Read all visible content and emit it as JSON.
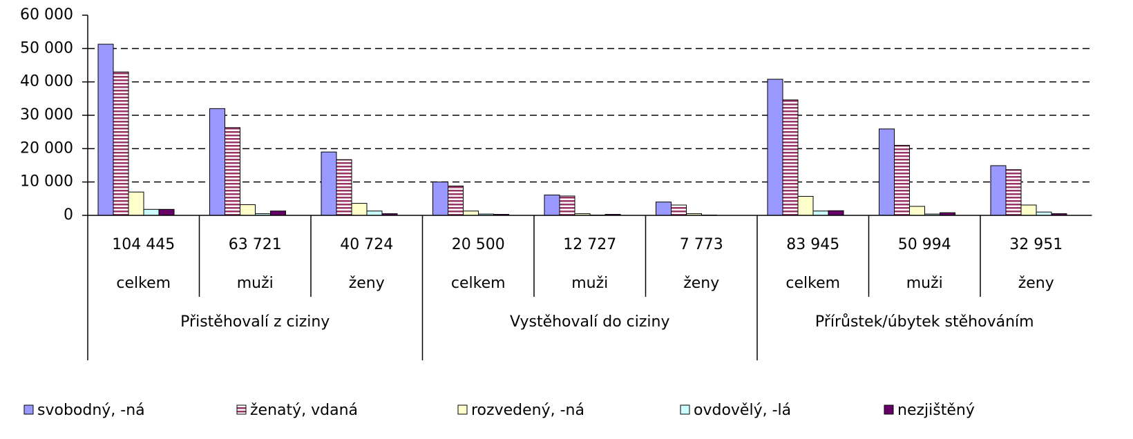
{
  "chart_data": {
    "type": "bar",
    "categories": [
      "celkem",
      "muži",
      "ženy",
      "celkem",
      "muži",
      "ženy",
      "celkem",
      "muži",
      "ženy"
    ],
    "totals": [
      "104 445",
      "63 721",
      "40 724",
      "20 500",
      "12 727",
      "7 773",
      "83 945",
      "50 994",
      "32 951"
    ],
    "groups": [
      "Přistěhovalí z ciziny",
      "Vystěhovalí do ciziny",
      "Přírůstek/úbytek stěhováním"
    ],
    "series": [
      {
        "name": "svobodný, -ná",
        "color": "#9999ff",
        "values": [
          51300,
          32000,
          19000,
          10000,
          6100,
          4000,
          40800,
          25900,
          14900
        ]
      },
      {
        "name": "ženatý, vdaná",
        "color": "#993366",
        "hatch": true,
        "values": [
          43000,
          26300,
          16700,
          8800,
          5800,
          3100,
          34600,
          21000,
          13700
        ]
      },
      {
        "name": "rozvedený, -ná",
        "color": "#ffffcc",
        "values": [
          7000,
          3200,
          3600,
          1300,
          500,
          500,
          5700,
          2700,
          3100
        ]
      },
      {
        "name": "ovdovělý, -lá",
        "color": "#ccffff",
        "values": [
          1800,
          500,
          1300,
          400,
          100,
          100,
          1300,
          400,
          1000
        ]
      },
      {
        "name": "nezjištěný",
        "color": "#660066",
        "values": [
          1800,
          1300,
          500,
          300,
          300,
          0,
          1400,
          800,
          500
        ]
      }
    ],
    "ylim": [
      0,
      60000
    ],
    "yticks": [
      {
        "value": 0,
        "label": "0"
      },
      {
        "value": 10000,
        "label": "10 000"
      },
      {
        "value": 20000,
        "label": "20 000"
      },
      {
        "value": 30000,
        "label": "30 000"
      },
      {
        "value": 40000,
        "label": "40 000"
      },
      {
        "value": 50000,
        "label": "50 000"
      },
      {
        "value": 60000,
        "label": "60 000"
      }
    ],
    "grid": true
  }
}
